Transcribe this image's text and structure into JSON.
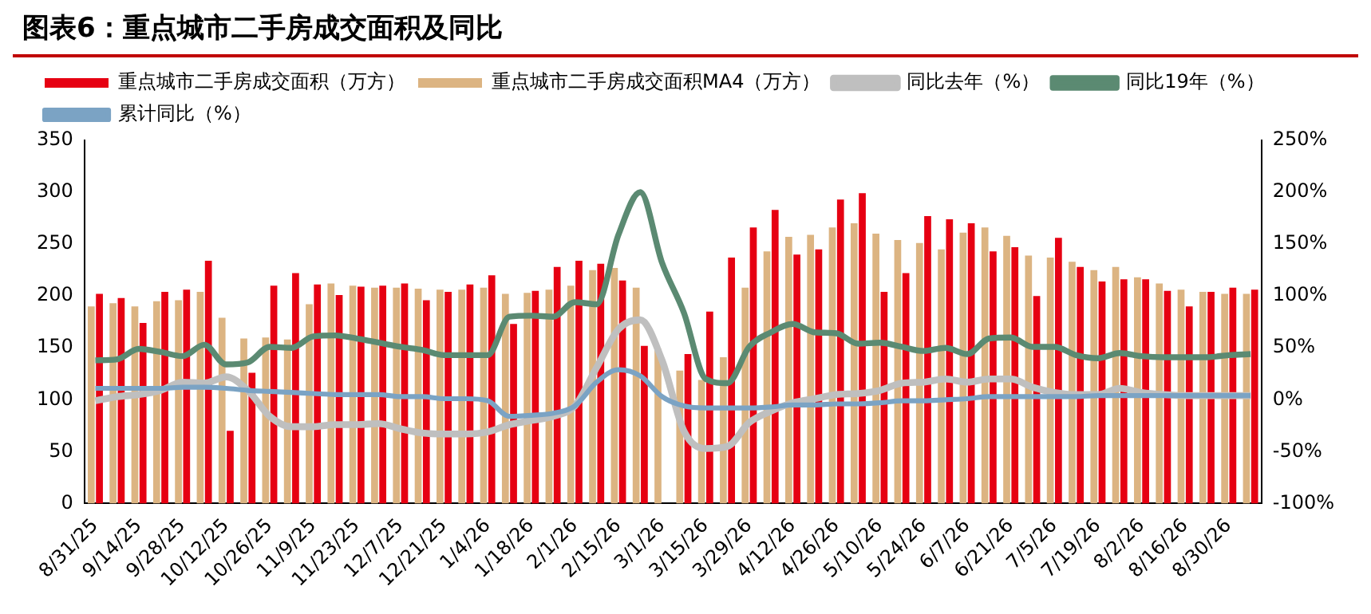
{
  "chart_data": {
    "type": "bar",
    "title": "图表6：重点城市二手房成交面积及同比",
    "categories": [
      "8/31/25",
      null,
      "9/14/25",
      null,
      "9/28/25",
      null,
      "10/12/25",
      null,
      "10/26/25",
      null,
      "11/9/25",
      null,
      "11/23/25",
      null,
      "12/7/25",
      null,
      "12/21/25",
      null,
      "1/4/26",
      null,
      "1/18/26",
      null,
      "2/1/26",
      null,
      "2/15/26",
      null,
      "3/1/26",
      null,
      "3/15/26",
      null,
      "3/29/26",
      null,
      "4/12/26",
      null,
      "4/26/26",
      null,
      "5/10/26",
      null,
      "5/24/26",
      null,
      "6/7/26",
      null,
      "6/21/26",
      null,
      "7/5/26",
      null,
      "7/19/26",
      null,
      "8/2/26",
      null,
      "8/16/26",
      null,
      "8/30/26",
      null
    ],
    "series": [
      {
        "name": "重点城市二手房成交面积（万方）",
        "color": "#e60012",
        "values": [
          202,
          198,
          174,
          204,
          206,
          234,
          70,
          126,
          210,
          222,
          211,
          201,
          209,
          210,
          212,
          196,
          204,
          211,
          220,
          173,
          205,
          228,
          234,
          231,
          215,
          152,
          0,
          144,
          185,
          237,
          266,
          283,
          240,
          245,
          293,
          299,
          204,
          222,
          277,
          274,
          270,
          243,
          247,
          200,
          256,
          228,
          214,
          216,
          216,
          205,
          190,
          204,
          208,
          206
        ]
      },
      {
        "name": "重点城市二手房成交面积MA4（万方）",
        "color": "#dcb482",
        "values": [
          190,
          193,
          190,
          195,
          196,
          204,
          179,
          159,
          160,
          158,
          192,
          212,
          210,
          208,
          208,
          207,
          206,
          206,
          208,
          202,
          203,
          206,
          210,
          225,
          227,
          208,
          149,
          128,
          119,
          141,
          208,
          243,
          257,
          259,
          266,
          270,
          260,
          254,
          251,
          245,
          261,
          266,
          258,
          239,
          237,
          233,
          225,
          228,
          218,
          212,
          206,
          204,
          202,
          202
        ]
      },
      {
        "name": "同比去年（%）",
        "type": "line",
        "axis": "y2",
        "color": "#bfbfbf",
        "values": [
          -1,
          3,
          5,
          9,
          17,
          16,
          22,
          9,
          -16,
          -26,
          -26,
          -24,
          -24,
          -23,
          -28,
          -32,
          -33,
          -33,
          -31,
          -24,
          -20,
          -16,
          -6,
          31,
          68,
          77,
          38,
          -30,
          -47,
          -45,
          -22,
          -11,
          -3,
          1,
          5,
          6,
          9,
          16,
          17,
          20,
          17,
          20,
          20,
          12,
          7,
          5,
          5,
          11,
          7,
          5,
          4,
          4,
          4,
          4
        ]
      },
      {
        "name": "同比19年（%）",
        "type": "line",
        "axis": "y2",
        "color": "#5b8a72",
        "values": [
          38,
          39,
          49,
          46,
          42,
          53,
          34,
          36,
          51,
          50,
          61,
          62,
          59,
          55,
          51,
          48,
          43,
          43,
          43,
          80,
          81,
          80,
          94,
          92,
          159,
          200,
          132,
          84,
          20,
          16,
          51,
          65,
          73,
          65,
          64,
          54,
          55,
          51,
          47,
          50,
          44,
          59,
          60,
          51,
          51,
          43,
          40,
          45,
          42,
          41,
          41,
          41,
          43,
          44
        ]
      },
      {
        "name": "累计同比（%）",
        "type": "line",
        "axis": "y2",
        "color": "#7ba3c4",
        "values": [
          11,
          11,
          11,
          11,
          12,
          12,
          11,
          9,
          8,
          7,
          6,
          5,
          5,
          5,
          3,
          3,
          1,
          1,
          -1,
          -16,
          -15,
          -13,
          -6,
          17,
          29,
          23,
          3,
          -6,
          -8,
          -8,
          -8,
          -7,
          -5,
          -5,
          -4,
          -4,
          -3,
          -1,
          -1,
          0,
          1,
          3,
          3,
          3,
          3,
          3,
          4,
          4,
          4,
          4,
          4,
          4,
          4,
          4
        ]
      }
    ],
    "ylim": [
      0,
      350
    ],
    "yticks": [
      0,
      50,
      100,
      150,
      200,
      250,
      300,
      350
    ],
    "y2lim": [
      -100,
      250
    ],
    "y2ticks": [
      {
        "value": -100,
        "label": "-100%"
      },
      {
        "value": -50,
        "label": "-50%"
      },
      {
        "value": 0,
        "label": "0%"
      },
      {
        "value": 50,
        "label": "50%"
      },
      {
        "value": 100,
        "label": "100%"
      },
      {
        "value": 150,
        "label": "150%"
      },
      {
        "value": 200,
        "label": "200%"
      },
      {
        "value": 250,
        "label": "250%"
      }
    ],
    "grid": false,
    "legend": "top"
  }
}
